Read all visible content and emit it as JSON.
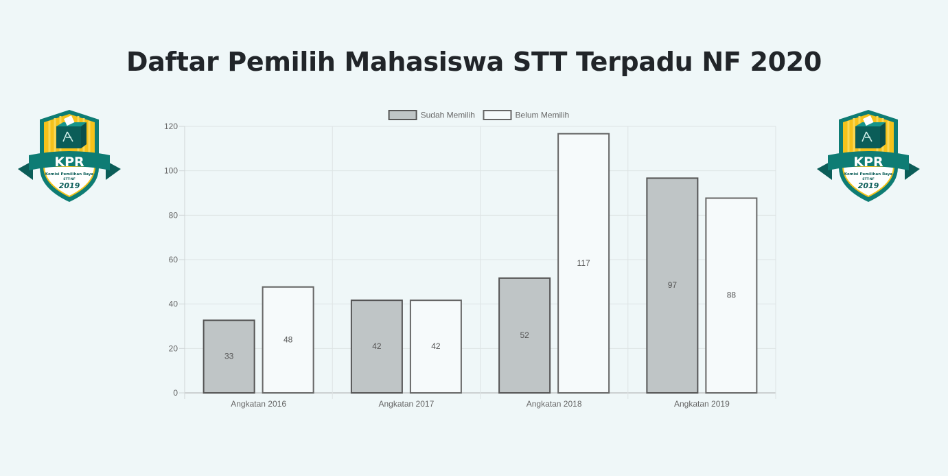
{
  "page": {
    "title": "Daftar Pemilih Mahasiswa STT Terpadu NF 2020"
  },
  "logo": {
    "text": "KPR",
    "subtitle": "Komisi Pemilihan Raya",
    "subtitle2": "STT-NF",
    "year": "2019",
    "colors": {
      "teal": "#0e7c74",
      "gold": "#f5c21b",
      "dark": "#0b5d58"
    }
  },
  "chart_data": {
    "type": "bar",
    "categories": [
      "Angkatan 2016",
      "Angkatan 2017",
      "Angkatan 2018",
      "Angkatan 2019"
    ],
    "series": [
      {
        "name": "Sudah Memilih",
        "values": [
          33,
          42,
          52,
          97
        ],
        "fill": "#bfc5c6",
        "stroke": "#555555"
      },
      {
        "name": "Belum Memilih",
        "values": [
          48,
          42,
          117,
          88
        ],
        "fill": "#f6fafb",
        "stroke": "#666666"
      }
    ],
    "ylim": [
      0,
      120
    ],
    "yticks": [
      0,
      20,
      40,
      60,
      80,
      100,
      120
    ],
    "grid": true,
    "legend": "top",
    "data_labels": true
  }
}
